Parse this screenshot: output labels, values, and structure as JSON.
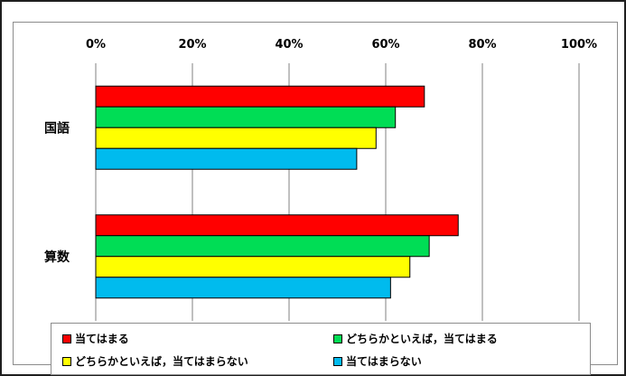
{
  "chart_data": {
    "type": "bar",
    "orientation": "horizontal",
    "categories": [
      "国語",
      "算数"
    ],
    "series": [
      {
        "name": "当てはまる",
        "color": "#ff0000",
        "values": [
          68,
          75
        ]
      },
      {
        "name": "どちらかといえば，当てはまる",
        "color": "#00dd55",
        "values": [
          62,
          69
        ]
      },
      {
        "name": "どちらかといえば，当てはまらない",
        "color": "#ffff00",
        "values": [
          58,
          65
        ]
      },
      {
        "name": "当てはまらない",
        "color": "#00bbee",
        "values": [
          54,
          61
        ]
      }
    ],
    "x_ticks": [
      "0%",
      "20%",
      "40%",
      "60%",
      "80%",
      "100%"
    ],
    "xlim": [
      0,
      100
    ],
    "grid": true,
    "legend_position": "bottom"
  }
}
